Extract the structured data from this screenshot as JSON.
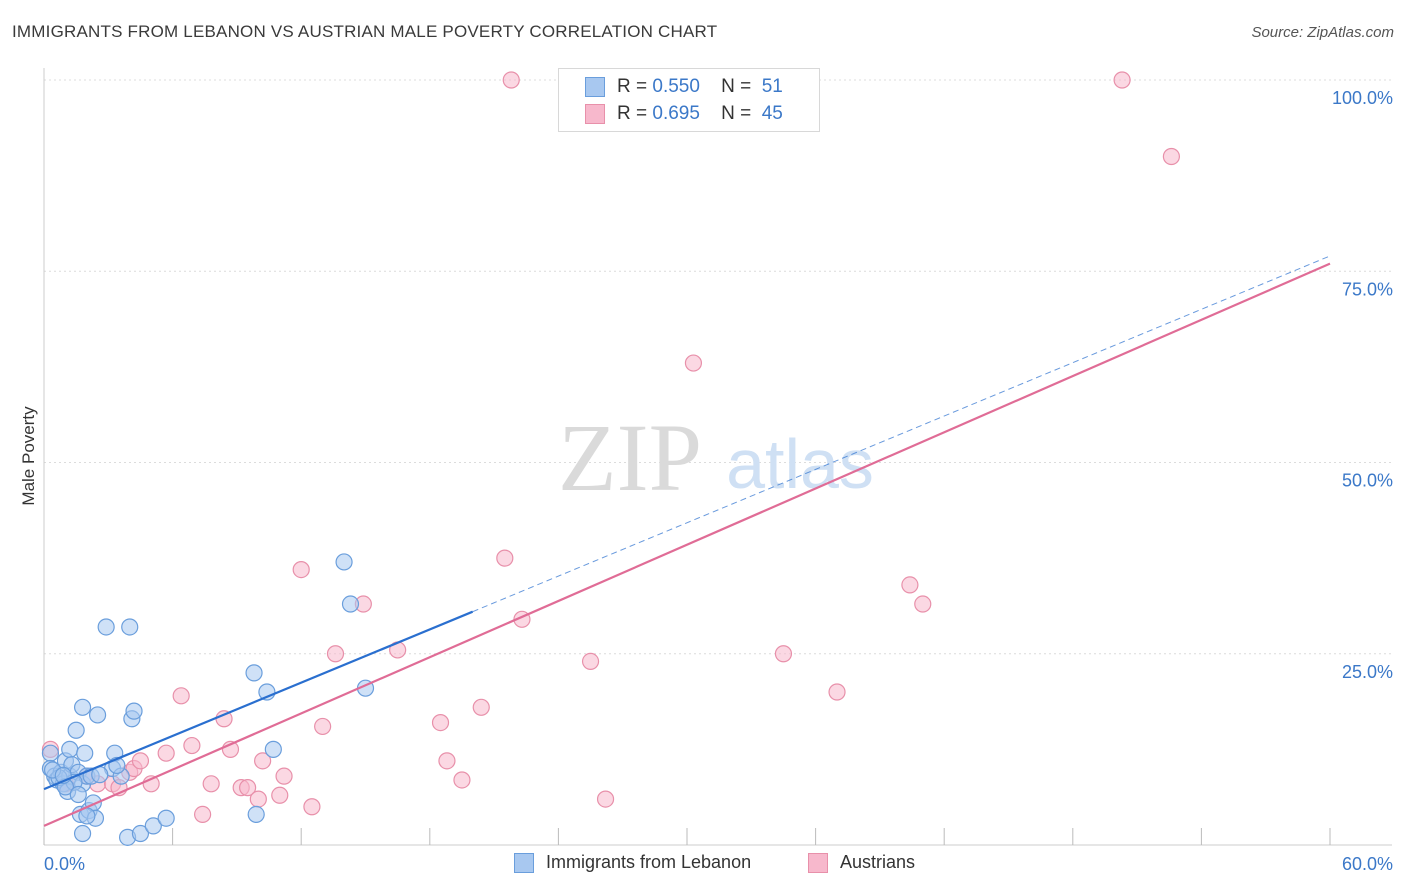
{
  "header": {
    "title": "IMMIGRANTS FROM LEBANON VS AUSTRIAN MALE POVERTY CORRELATION CHART",
    "source": "Source: ZipAtlas.com"
  },
  "watermark": {
    "part1": "ZIP",
    "part2": "atlas"
  },
  "legend_top": {
    "rows": [
      {
        "r_label": "R =",
        "r_value": "0.550",
        "n_label": "N =",
        "n_value": "51"
      },
      {
        "r_label": "R =",
        "r_value": "0.695",
        "n_label": "N =",
        "n_value": "45"
      }
    ]
  },
  "legend_bottom": {
    "items": [
      "Immigrants from Lebanon",
      "Austrians"
    ]
  },
  "colors": {
    "blue_fill": "#a8c8f0",
    "blue_stroke": "#6a9edc",
    "blue_line": "#2a6fcf",
    "pink_fill": "#f7b8cc",
    "pink_stroke": "#e890aa",
    "pink_line": "#e06c96",
    "tick_label": "#3b78c8",
    "grid": "#dcdcdc"
  },
  "chart_data": {
    "type": "scatter",
    "title": "IMMIGRANTS FROM LEBANON VS AUSTRIAN MALE POVERTY CORRELATION CHART",
    "xlabel": "",
    "ylabel": "Male Poverty",
    "xlim": [
      0,
      60
    ],
    "ylim": [
      0,
      100
    ],
    "x_tick_labels": [
      "0.0%",
      "60.0%"
    ],
    "y_ticks": [
      25,
      50,
      75,
      100
    ],
    "y_tick_labels": [
      "25.0%",
      "50.0%",
      "75.0%",
      "100.0%"
    ],
    "series": [
      {
        "name": "Immigrants from Lebanon",
        "R": 0.55,
        "N": 51,
        "trend": {
          "x0": 0,
          "y0": 7.3,
          "x1": 20,
          "y1": 30.5,
          "dashed_to_x": 60,
          "dashed_to_y": 77
        },
        "points": [
          [
            0.3,
            12.0
          ],
          [
            0.3,
            10.0
          ],
          [
            0.5,
            9.0
          ],
          [
            0.6,
            8.5
          ],
          [
            0.8,
            9.5
          ],
          [
            0.9,
            8.0
          ],
          [
            1.0,
            11.0
          ],
          [
            1.1,
            7.0
          ],
          [
            1.2,
            9.0
          ],
          [
            1.2,
            12.5
          ],
          [
            1.3,
            10.5
          ],
          [
            1.5,
            15.0
          ],
          [
            1.6,
            9.5
          ],
          [
            1.7,
            4.0
          ],
          [
            1.8,
            1.5
          ],
          [
            1.8,
            8.0
          ],
          [
            1.8,
            18.0
          ],
          [
            1.9,
            12.0
          ],
          [
            2.0,
            9.0
          ],
          [
            2.1,
            4.5
          ],
          [
            2.2,
            9.0
          ],
          [
            2.3,
            5.5
          ],
          [
            2.4,
            3.5
          ],
          [
            2.5,
            17.0
          ],
          [
            2.9,
            28.5
          ],
          [
            3.2,
            10.0
          ],
          [
            3.3,
            12.0
          ],
          [
            3.6,
            9.0
          ],
          [
            3.9,
            1.0
          ],
          [
            4.0,
            28.5
          ],
          [
            4.1,
            16.5
          ],
          [
            4.2,
            17.5
          ],
          [
            4.5,
            1.5
          ],
          [
            5.1,
            2.5
          ],
          [
            5.7,
            3.5
          ],
          [
            9.8,
            22.5
          ],
          [
            9.9,
            4.0
          ],
          [
            10.4,
            20.0
          ],
          [
            10.7,
            12.5
          ],
          [
            14.0,
            37.0
          ],
          [
            14.3,
            31.5
          ],
          [
            15.0,
            20.5
          ],
          [
            0.7,
            8.8
          ],
          [
            1.4,
            8.2
          ],
          [
            2.6,
            9.2
          ],
          [
            0.4,
            9.8
          ],
          [
            1.0,
            7.6
          ],
          [
            3.4,
            10.4
          ],
          [
            2.0,
            3.8
          ],
          [
            1.6,
            6.6
          ],
          [
            0.9,
            9.1
          ]
        ]
      },
      {
        "name": "Austrians",
        "R": 0.695,
        "N": 45,
        "trend": {
          "x0": 0,
          "y0": 2.5,
          "x1": 60,
          "y1": 76.0
        },
        "points": [
          [
            0.3,
            12.5
          ],
          [
            1.0,
            8.0
          ],
          [
            2.0,
            9.0
          ],
          [
            2.5,
            8.0
          ],
          [
            3.2,
            8.0
          ],
          [
            3.5,
            7.5
          ],
          [
            4.0,
            9.5
          ],
          [
            4.2,
            10.0
          ],
          [
            4.5,
            11.0
          ],
          [
            5.0,
            8.0
          ],
          [
            5.7,
            12.0
          ],
          [
            6.4,
            19.5
          ],
          [
            6.9,
            13.0
          ],
          [
            7.4,
            4.0
          ],
          [
            7.8,
            8.0
          ],
          [
            8.4,
            16.5
          ],
          [
            8.7,
            12.5
          ],
          [
            9.2,
            7.5
          ],
          [
            9.5,
            7.5
          ],
          [
            10.0,
            6.0
          ],
          [
            10.2,
            11.0
          ],
          [
            11.0,
            6.5
          ],
          [
            11.2,
            9.0
          ],
          [
            12.0,
            36.0
          ],
          [
            12.5,
            5.0
          ],
          [
            13.0,
            15.5
          ],
          [
            13.6,
            25.0
          ],
          [
            14.9,
            31.5
          ],
          [
            16.5,
            25.5
          ],
          [
            18.5,
            16.0
          ],
          [
            18.8,
            11.0
          ],
          [
            19.5,
            8.5
          ],
          [
            20.4,
            18.0
          ],
          [
            21.5,
            37.5
          ],
          [
            22.3,
            29.5
          ],
          [
            21.8,
            100.0
          ],
          [
            25.5,
            24.0
          ],
          [
            26.2,
            6.0
          ],
          [
            30.3,
            63.0
          ],
          [
            34.5,
            25.0
          ],
          [
            37.0,
            20.0
          ],
          [
            40.4,
            34.0
          ],
          [
            41.0,
            31.5
          ],
          [
            50.3,
            100.0
          ],
          [
            52.6,
            90.0
          ]
        ]
      }
    ]
  }
}
